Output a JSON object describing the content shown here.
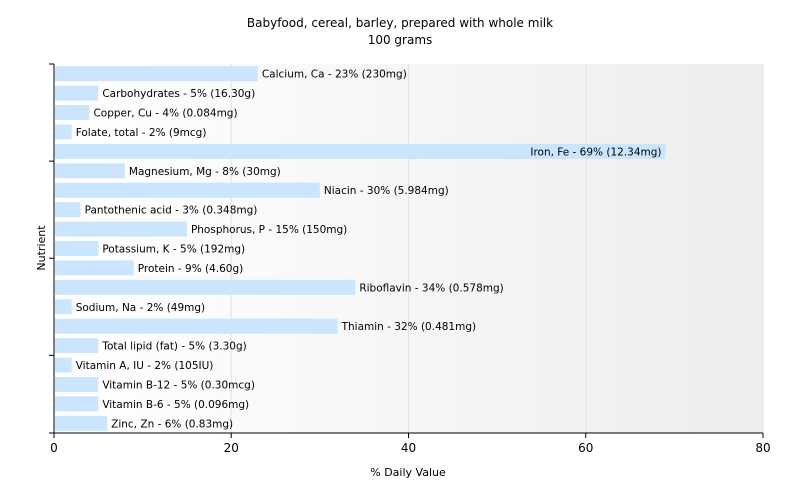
{
  "chart_data": {
    "type": "bar",
    "orientation": "horizontal",
    "title": "Babyfood, cereal, barley, prepared with whole milk",
    "subtitle": "100 grams",
    "xlabel": "% Daily Value",
    "ylabel": "Nutrient",
    "xlim": [
      0,
      80
    ],
    "xticks": [
      "0",
      "20",
      "40",
      "60",
      "80"
    ],
    "grid": true,
    "bar_color": "#cce5ff",
    "categories": [
      "Calcium, Ca",
      "Carbohydrates",
      "Copper, Cu",
      "Folate, total",
      "Iron, Fe",
      "Magnesium, Mg",
      "Niacin",
      "Pantothenic acid",
      "Phosphorus, P",
      "Potassium, K",
      "Protein",
      "Riboflavin",
      "Sodium, Na",
      "Thiamin",
      "Total lipid (fat)",
      "Vitamin A, IU",
      "Vitamin B-12",
      "Vitamin B-6",
      "Zinc, Zn"
    ],
    "values": [
      23,
      5,
      4,
      2,
      69,
      8,
      30,
      3,
      15,
      5,
      9,
      34,
      2,
      32,
      5,
      2,
      5,
      5,
      6
    ],
    "labels": [
      "Calcium, Ca - 23% (230mg)",
      "Carbohydrates - 5% (16.30g)",
      "Copper, Cu - 4% (0.084mg)",
      "Folate, total - 2% (9mcg)",
      "Iron, Fe - 69% (12.34mg)",
      "Magnesium, Mg - 8% (30mg)",
      "Niacin - 30% (5.984mg)",
      "Pantothenic acid - 3% (0.348mg)",
      "Phosphorus, P - 15% (150mg)",
      "Potassium, K - 5% (192mg)",
      "Protein - 9% (4.60g)",
      "Riboflavin - 34% (0.578mg)",
      "Sodium, Na - 2% (49mg)",
      "Thiamin - 32% (0.481mg)",
      "Total lipid (fat) - 5% (3.30g)",
      "Vitamin A, IU - 2% (105IU)",
      "Vitamin B-12 - 5% (0.30mcg)",
      "Vitamin B-6 - 5% (0.096mg)",
      "Zinc, Zn - 6% (0.83mg)"
    ]
  }
}
